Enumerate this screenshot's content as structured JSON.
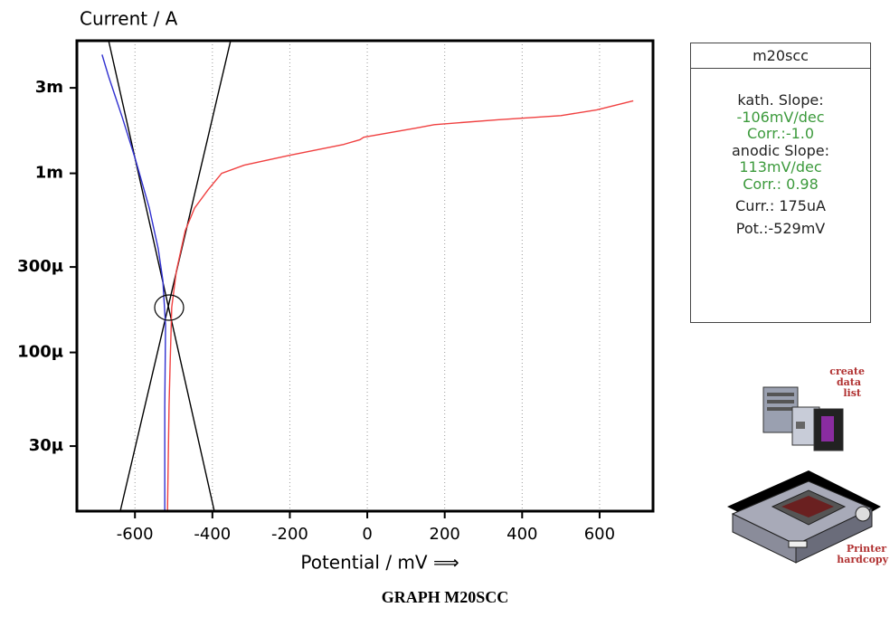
{
  "chart_data": {
    "type": "line",
    "title": "Current / A",
    "xlabel": "Potential / mV ⟹",
    "yscale": "log",
    "grid": "x",
    "xlim": [
      -750,
      738
    ],
    "ylim": [
      1.3e-05,
      0.0055
    ],
    "xticks": [
      -600,
      -400,
      -200,
      0,
      200,
      400,
      600
    ],
    "yticks": [
      {
        "value": 0.003,
        "label": "3m"
      },
      {
        "value": 0.001,
        "label": "1m"
      },
      {
        "value": 0.0003,
        "label": "300µ"
      },
      {
        "value": 0.0001,
        "label": "100µ"
      },
      {
        "value": 3e-05,
        "label": "30µ"
      }
    ],
    "series": [
      {
        "color": "#000000",
        "x": [
          -668,
          -395
        ],
        "values": [
          0.0055,
          1.3e-05
        ]
      },
      {
        "color": "#000000",
        "x": [
          -638,
          -353
        ],
        "values": [
          1.3e-05,
          0.0055
        ]
      },
      {
        "color": "#3030d0",
        "x": [
          -685,
          -668,
          -633,
          -598,
          -563,
          -540,
          -528,
          -521,
          -523,
          -523
        ],
        "values": [
          0.0046,
          0.00347,
          0.00206,
          0.00118,
          0.00064,
          0.00038,
          0.000253,
          0.000142,
          5e-05,
          1.3e-05
        ]
      },
      {
        "color": "#f04040",
        "x": [
          -516,
          -512,
          -509,
          -505,
          -493,
          -470,
          -446,
          -411,
          -376,
          -318,
          -201,
          -61,
          -19,
          -9,
          126,
          173,
          336,
          500,
          593,
          687
        ],
        "values": [
          1.3e-05,
          5e-05,
          8.9e-05,
          0.000179,
          0.000285,
          0.00048,
          0.00064,
          0.00081,
          0.001,
          0.00111,
          0.00126,
          0.00145,
          0.00154,
          0.00159,
          0.00179,
          0.00187,
          0.00199,
          0.0021,
          0.00226,
          0.00254
        ]
      }
    ]
  },
  "panel": {
    "title": "m20scc",
    "lines": [
      "kath. Slope:",
      "-106mV/dec",
      "Corr.:-1.0",
      "anodic Slope:",
      "113mV/dec",
      "Corr.: 0.98",
      "Curr.: 175uA",
      "Pot.:-529mV"
    ]
  },
  "buttons": [
    {
      "label_lines": [
        "create",
        "data",
        "list"
      ]
    },
    {
      "label_lines": [
        "Printer",
        "hardcopy"
      ]
    }
  ],
  "caption": "GRAPH M20SCC"
}
